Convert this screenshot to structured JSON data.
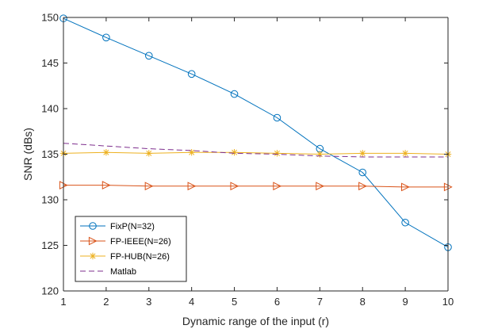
{
  "chart_data": {
    "type": "line",
    "title": "",
    "xlabel": "Dynamic range of the input (r)",
    "ylabel": "SNR (dBs)",
    "xlim": [
      1,
      10
    ],
    "ylim": [
      120,
      150
    ],
    "xticks": [
      1,
      2,
      3,
      4,
      5,
      6,
      7,
      8,
      9,
      10
    ],
    "yticks": [
      120,
      125,
      130,
      135,
      140,
      145,
      150
    ],
    "grid": false,
    "legend_position": "bottom-left",
    "x": [
      1,
      2,
      3,
      4,
      5,
      6,
      7,
      8,
      9,
      10
    ],
    "series": [
      {
        "name": "FixP(N=32)",
        "values": [
          149.9,
          147.8,
          145.8,
          143.8,
          141.6,
          139.0,
          135.6,
          133.0,
          127.5,
          124.8
        ],
        "color": "#0072BD",
        "marker": "circle",
        "line_style": "solid"
      },
      {
        "name": "FP-IEEE(N=26)",
        "values": [
          131.6,
          131.6,
          131.5,
          131.5,
          131.5,
          131.5,
          131.5,
          131.5,
          131.4,
          131.4
        ],
        "color": "#D95319",
        "marker": "triangle-right",
        "line_style": "solid"
      },
      {
        "name": "FP-HUB(N=26)",
        "values": [
          135.1,
          135.2,
          135.1,
          135.2,
          135.2,
          135.1,
          135.0,
          135.1,
          135.1,
          135.0
        ],
        "color": "#EDB120",
        "marker": "asterisk",
        "line_style": "solid"
      },
      {
        "name": "Matlab",
        "values": [
          136.2,
          135.9,
          135.6,
          135.4,
          135.1,
          135.0,
          134.8,
          134.7,
          134.7,
          134.7
        ],
        "color": "#7E2F8E",
        "marker": "none",
        "line_style": "dashed"
      }
    ]
  }
}
